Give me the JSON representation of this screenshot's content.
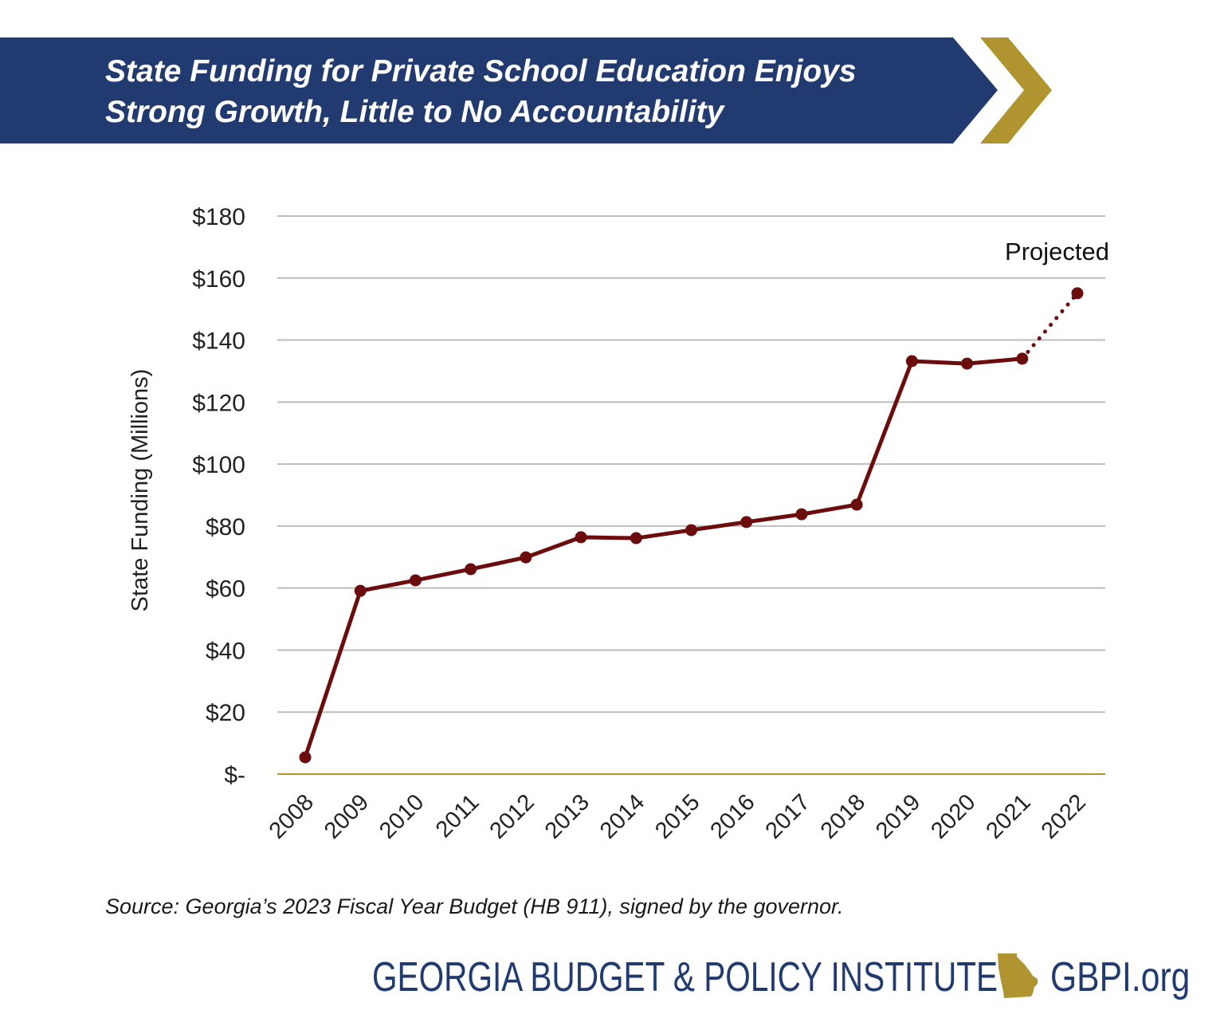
{
  "header": {
    "title_line1": "State Funding for Private School Education Enjoys",
    "title_line2": "Strong Growth, Little to No Accountability",
    "banner_color": "#213a6f",
    "chevron_color": "#b0942f"
  },
  "chart_data": {
    "type": "line",
    "title": "State Funding for Private School Education Enjoys Strong Growth, Little to No Accountability",
    "xlabel": "",
    "ylabel": "State Funding (Millions)",
    "ylim": [
      0,
      180
    ],
    "yticks": [
      0,
      20,
      40,
      60,
      80,
      100,
      120,
      140,
      160,
      180
    ],
    "ytick_labels": [
      "$-",
      "$20",
      "$40",
      "$60",
      "$80",
      "$100",
      "$120",
      "$140",
      "$160",
      "$180"
    ],
    "categories": [
      "2008",
      "2009",
      "2010",
      "2011",
      "2012",
      "2013",
      "2014",
      "2015",
      "2016",
      "2017",
      "2018",
      "2019",
      "2020",
      "2021",
      "2022"
    ],
    "values": [
      5.4,
      59.1,
      62.5,
      66.1,
      69.9,
      76.4,
      76.1,
      78.7,
      81.3,
      83.8,
      86.9,
      133.2,
      132.4,
      134.0,
      155.1
    ],
    "projected_from": "2021",
    "annotation": "Projected",
    "grid": true,
    "line_color": "#6b0d0d",
    "baseline_color": "#b0942f"
  },
  "source": "Source: Georgia’s 2023 Fiscal Year Budget (HB 911), signed by the governor.",
  "footer": {
    "org": "GEORGIA BUDGET & POLICY INSTITUTE",
    "url": "GBPI.org",
    "logo_icon": "georgia-state-icon"
  }
}
